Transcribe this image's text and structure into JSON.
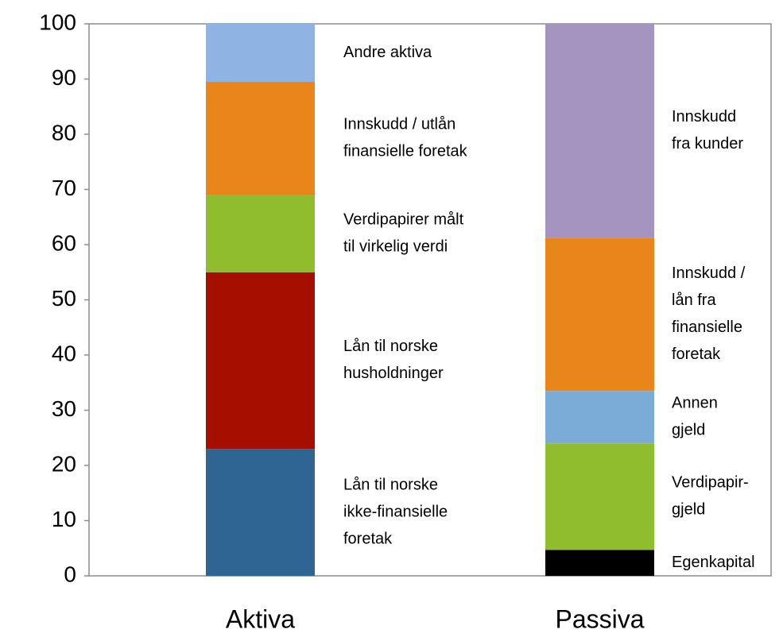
{
  "chart_data": {
    "type": "stacked-bar",
    "categories": [
      "Aktiva",
      "Passiva"
    ],
    "ylim": [
      0,
      100
    ],
    "yticks": [
      0,
      10,
      20,
      30,
      40,
      50,
      60,
      70,
      80,
      90,
      100
    ],
    "stacks": [
      [
        {
          "label": [
            "Lån til norske",
            "ikke-finansielle",
            "foretak"
          ],
          "color": "#2e6593",
          "value": 23
        },
        {
          "label": [
            "Lån til norske",
            "husholdninger"
          ],
          "color": "#a50f00",
          "value": 32
        },
        {
          "label": [
            "Verdipapirer målt",
            "til virkelig verdi"
          ],
          "color": "#90bd2e",
          "value": 14
        },
        {
          "label": [
            "Innskudd / utlån",
            "finansielle foretak"
          ],
          "color": "#e8861c",
          "value": 20.5
        },
        {
          "label": [
            "Andre  aktiva"
          ],
          "color": "#8db4e2",
          "value": 10.5
        }
      ],
      [
        {
          "label": [
            "Egenkapital"
          ],
          "color": "#000000",
          "value": 4.7
        },
        {
          "label": [
            "Verdipapir-",
            "gjeld"
          ],
          "color": "#90bd2e",
          "value": 19.3
        },
        {
          "label": [
            "Annen",
            "gjeld"
          ],
          "color": "#7bacd8",
          "value": 9.5
        },
        {
          "label": [
            "Innskudd /",
            "lån fra",
            "finansielle",
            "foretak"
          ],
          "color": "#e8861c",
          "value": 27.7
        },
        {
          "label": [
            "Innskudd",
            "fra kunder"
          ],
          "color": "#a394c0",
          "value": 38.8
        }
      ]
    ]
  }
}
